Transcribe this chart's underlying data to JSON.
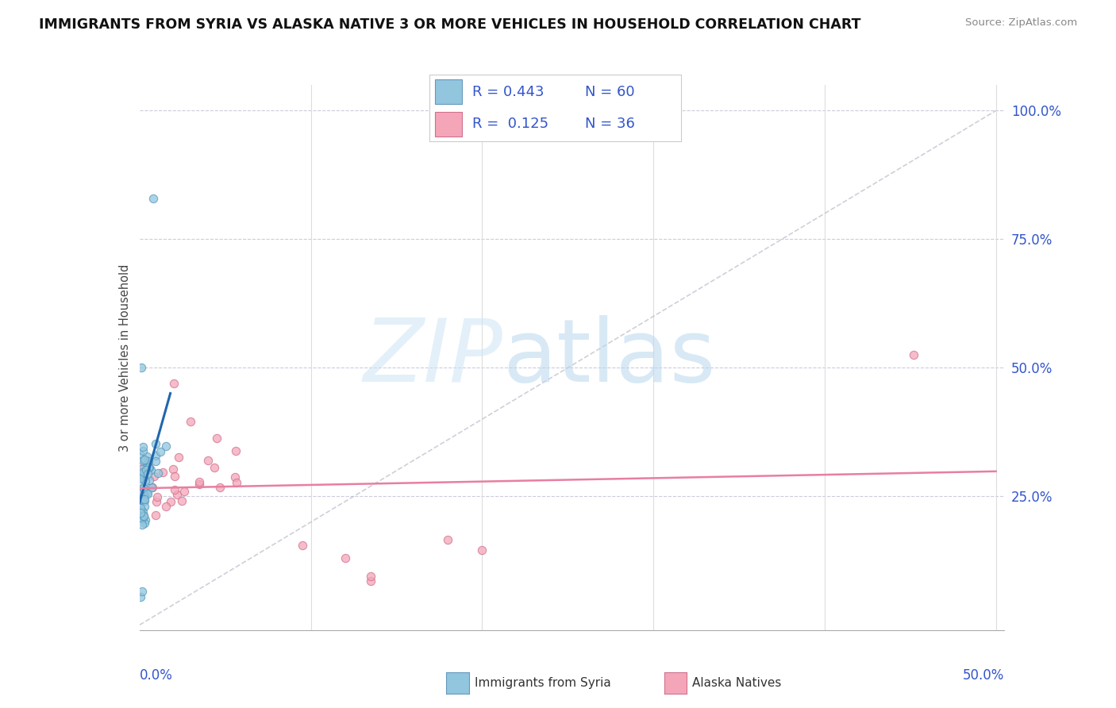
{
  "title": "IMMIGRANTS FROM SYRIA VS ALASKA NATIVE 3 OR MORE VEHICLES IN HOUSEHOLD CORRELATION CHART",
  "source": "Source: ZipAtlas.com",
  "ylabel": "3 or more Vehicles in Household",
  "color_blue": "#92c5de",
  "color_pink": "#f4a6b8",
  "color_trendline_blue": "#2166ac",
  "color_trendline_pink": "#e87fa0",
  "color_diagonal": "#b8b8d0",
  "legend_r1": "R = 0.443",
  "legend_n1": "N = 60",
  "legend_r2": "R =  0.125",
  "legend_n2": "N = 36",
  "xlim": [
    0.0,
    0.505
  ],
  "ylim": [
    -0.01,
    1.05
  ],
  "yticks": [
    0.0,
    0.25,
    0.5,
    0.75,
    1.0
  ],
  "ytick_labels": [
    "",
    "25.0%",
    "50.0%",
    "75.0%",
    "100.0%"
  ],
  "xtick_left": "0.0%",
  "xtick_right": "50.0%"
}
